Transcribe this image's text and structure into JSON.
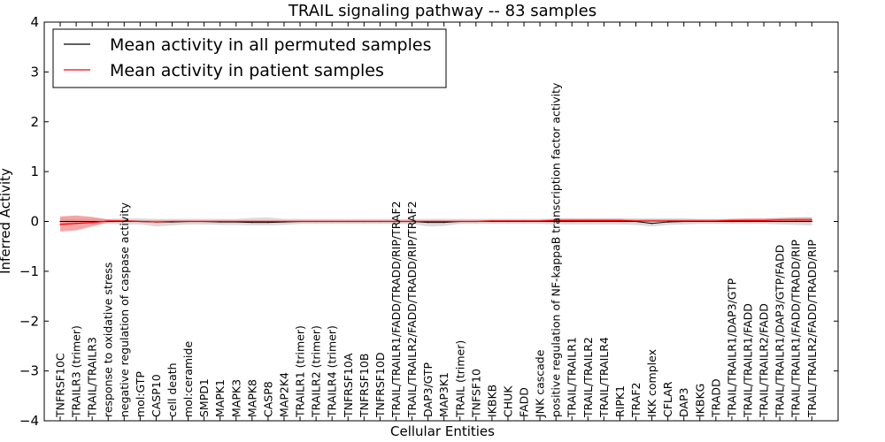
{
  "chart_data": {
    "type": "line",
    "title": "TRAIL signaling pathway -- 83 samples",
    "xlabel": "Cellular Entities",
    "ylabel": "Inferred Activity",
    "ylim": [
      -4,
      4
    ],
    "yticks": [
      "4",
      "3",
      "2",
      "1",
      "0",
      "−1",
      "−2",
      "−3",
      "−4"
    ],
    "ytick_values": [
      4,
      3,
      2,
      1,
      0,
      -1,
      -2,
      -3,
      -4
    ],
    "legend_position": "top-left",
    "categories": [
      "TNFRSF10C",
      "TRAILR3 (trimer)",
      "TRAIL/TRAILR3",
      "response to oxidative stress",
      "negative regulation of caspase activity",
      "mol:GTP",
      "CASP10",
      "cell death",
      "mol:ceramide",
      "SMPD1",
      "MAPK1",
      "MAPK3",
      "MAPK8",
      "CASP8",
      "MAP2K4",
      "TRAILR1 (trimer)",
      "TRAILR2 (trimer)",
      "TRAILR4 (trimer)",
      "TNFRSF10A",
      "TNFRSF10B",
      "TNFRSF10D",
      "TRAIL/TRAILR1/FADD/TRADD/RIP/TRAF2",
      "TRAIL/TRAILR2/FADD/TRADD/RIP/TRAF2",
      "DAP3/GTP",
      "MAP3K1",
      "TRAIL (trimer)",
      "TNFSF10",
      "IKBKB",
      "CHUK",
      "FADD",
      "JNK cascade",
      "positive regulation of NF-kappaB transcription factor activity",
      "TRAIL/TRAILR1",
      "TRAIL/TRAILR2",
      "TRAIL/TRAILR4",
      "RIPK1",
      "TRAF2",
      "IKK complex",
      "CFLAR",
      "DAP3",
      "IKBKG",
      "TRADD",
      "TRAIL/TRAILR1/DAP3/GTP",
      "TRAIL/TRAILR1/FADD",
      "TRAIL/TRAILR2/FADD",
      "TRAIL/TRAILR1/DAP3/GTP/FADD",
      "TRAIL/TRAILR1/FADD/TRADD/RIP",
      "TRAIL/TRAILR2/FADD/TRADD/RIP"
    ],
    "series": [
      {
        "name": "Mean activity in all permuted samples",
        "color": "#000000",
        "band_color": "#bbbbbb",
        "values": [
          0,
          0,
          0,
          0,
          0,
          0,
          -0.01,
          -0.01,
          0,
          0,
          -0.01,
          -0.01,
          -0.02,
          -0.02,
          -0.01,
          0,
          0,
          0,
          0,
          0,
          0,
          0,
          0,
          -0.02,
          -0.02,
          0,
          0,
          0,
          0,
          0,
          0,
          0,
          0,
          0,
          0,
          0,
          0,
          -0.04,
          -0.01,
          0,
          0,
          0,
          0,
          0,
          0,
          0,
          0,
          0
        ],
        "band_low": [
          -0.06,
          -0.05,
          -0.05,
          -0.05,
          -0.06,
          -0.06,
          -0.1,
          -0.08,
          -0.06,
          -0.06,
          -0.07,
          -0.07,
          -0.08,
          -0.08,
          -0.07,
          -0.05,
          -0.05,
          -0.05,
          -0.05,
          -0.05,
          -0.05,
          -0.05,
          -0.05,
          -0.1,
          -0.09,
          -0.05,
          -0.05,
          -0.05,
          -0.05,
          -0.05,
          -0.05,
          -0.06,
          -0.06,
          -0.06,
          -0.06,
          -0.06,
          -0.07,
          -0.1,
          -0.07,
          -0.06,
          -0.05,
          -0.05,
          -0.05,
          -0.05,
          -0.05,
          -0.06,
          -0.07,
          -0.08
        ],
        "band_high": [
          0.06,
          0.05,
          0.05,
          0.05,
          0.06,
          0.06,
          0.05,
          0.05,
          0.05,
          0.05,
          0.05,
          0.05,
          0.07,
          0.08,
          0.05,
          0.05,
          0.05,
          0.05,
          0.05,
          0.05,
          0.05,
          0.05,
          0.05,
          0.05,
          0.05,
          0.05,
          0.05,
          0.05,
          0.05,
          0.05,
          0.05,
          0.06,
          0.06,
          0.06,
          0.06,
          0.06,
          0.06,
          0.06,
          0.06,
          0.06,
          0.05,
          0.05,
          0.05,
          0.05,
          0.05,
          0.06,
          0.07,
          0.08
        ]
      },
      {
        "name": "Mean activity in patient samples",
        "color": "#ff0000",
        "band_color": "#f08080",
        "values": [
          -0.06,
          -0.04,
          -0.02,
          0.01,
          0.01,
          0,
          -0.01,
          0,
          0,
          0,
          0,
          0,
          0,
          0,
          0,
          0,
          0,
          0,
          0,
          0,
          0,
          0,
          0,
          0,
          0,
          0,
          0,
          0.01,
          0.01,
          0.01,
          0.01,
          0.02,
          0.02,
          0.02,
          0.02,
          0.02,
          0.01,
          0.01,
          0.01,
          0.01,
          0.01,
          0.01,
          0.02,
          0.02,
          0.02,
          0.03,
          0.03,
          0.03
        ],
        "band_low": [
          -0.2,
          -0.18,
          -0.1,
          -0.02,
          -0.01,
          -0.01,
          -0.02,
          -0.01,
          -0.01,
          -0.01,
          -0.01,
          -0.01,
          -0.01,
          -0.01,
          -0.01,
          -0.01,
          -0.01,
          -0.01,
          -0.01,
          -0.01,
          -0.01,
          -0.01,
          -0.01,
          -0.01,
          -0.01,
          -0.01,
          -0.01,
          -0.01,
          -0.01,
          -0.01,
          -0.01,
          -0.01,
          -0.01,
          -0.01,
          -0.01,
          -0.01,
          -0.01,
          -0.01,
          -0.01,
          -0.01,
          -0.01,
          -0.01,
          -0.01,
          -0.01,
          -0.01,
          -0.01,
          -0.01,
          -0.01
        ],
        "band_high": [
          0.1,
          0.12,
          0.09,
          0.04,
          0.03,
          0.02,
          0.02,
          0.02,
          0.02,
          0.02,
          0.02,
          0.02,
          0.02,
          0.02,
          0.02,
          0.02,
          0.02,
          0.02,
          0.02,
          0.02,
          0.02,
          0.02,
          0.02,
          0.02,
          0.02,
          0.02,
          0.02,
          0.03,
          0.03,
          0.03,
          0.03,
          0.05,
          0.05,
          0.05,
          0.05,
          0.05,
          0.04,
          0.04,
          0.04,
          0.04,
          0.04,
          0.04,
          0.05,
          0.06,
          0.06,
          0.07,
          0.08,
          0.08
        ]
      }
    ]
  }
}
